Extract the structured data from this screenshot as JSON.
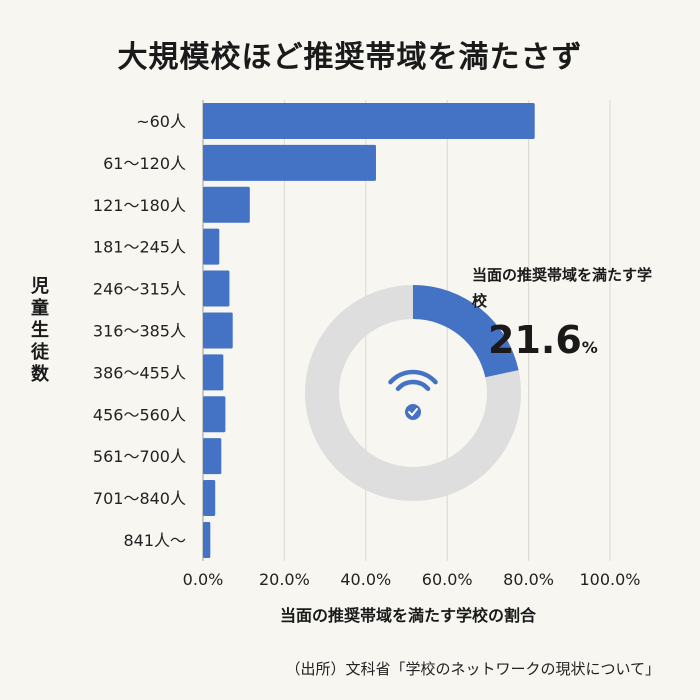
{
  "title": "大規模校ほど推奨帯域を満たさず",
  "source": "（出所）文科省「学校のネットワークの現状について」",
  "chart_data": [
    {
      "type": "bar",
      "orientation": "horizontal",
      "categories": [
        "~60人",
        "61～120人",
        "121～180人",
        "181～245人",
        "246～315人",
        "316～385人",
        "386～455人",
        "456～560人",
        "561～700人",
        "701～840人",
        "841人～"
      ],
      "values": [
        81.5,
        42.5,
        11.5,
        4.0,
        6.5,
        7.3,
        5.0,
        5.5,
        4.5,
        3.0,
        1.8
      ],
      "xlabel": "当面の推奨帯域を満たす学校の割合",
      "ylabel": "児童生徒数",
      "xticks": [
        "0.0%",
        "20.0%",
        "40.0%",
        "60.0%",
        "80.0%",
        "100.0%"
      ],
      "xlim": [
        0,
        100
      ],
      "grid": true,
      "bar_color": "#4472c4"
    },
    {
      "type": "pie",
      "style": "donut",
      "label": "当面の推奨帯域を満たす学校",
      "value": 21.6,
      "value_text": "21.6",
      "unit": "%",
      "colors": {
        "filled": "#4472c4",
        "remainder": "#dedede"
      },
      "center_icon": "wifi-check-icon"
    }
  ]
}
